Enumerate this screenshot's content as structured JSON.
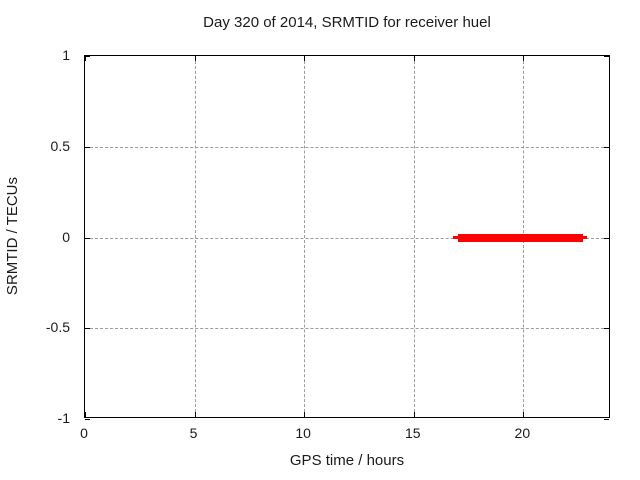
{
  "chart_data": {
    "type": "line",
    "title": "Day 320 of 2014, SRMTID for receiver huel",
    "xlabel": "GPS time / hours",
    "ylabel": "SRMTID / TECUs",
    "xlim": [
      0,
      24
    ],
    "ylim": [
      -1,
      1
    ],
    "x_ticks": [
      0,
      5,
      10,
      15,
      20
    ],
    "y_ticks": [
      1,
      0.5,
      0,
      -0.5,
      -1
    ],
    "grid": true,
    "legend": false,
    "series": [
      {
        "name": "SRMTID",
        "color": "#ff0000",
        "style": "thick horizontal line segment",
        "y_value": 0,
        "x_start": 16.8,
        "x_end": 22.9,
        "core_x_start": 17.0,
        "core_x_end": 22.7
      }
    ],
    "colors": {
      "line": "#ff0000",
      "grid": "#9c9c9c",
      "border": "#000000",
      "background": "#ffffff",
      "text": "#1a1a1a"
    }
  }
}
